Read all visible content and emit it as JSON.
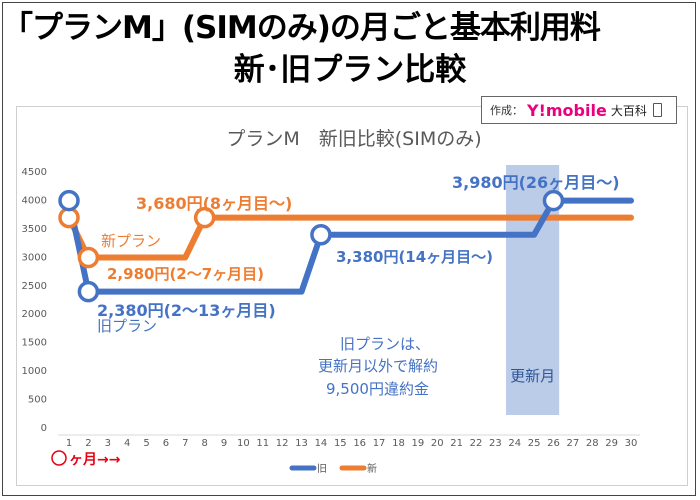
{
  "header": {
    "title_line1": "「プランM」(SIMのみ)の月ごと基本利用料",
    "title_line2": "新･旧プラン比較"
  },
  "badge": {
    "label": "作成：",
    "brand": "Y!mobile",
    "suffix": "大百科",
    "device_icon": "phone-icon"
  },
  "chart_data": {
    "type": "line",
    "title": "プランM　新旧比較(SIMのみ)",
    "xlabel": "〇ヶ月→→",
    "ylabel": "",
    "ylim": [
      0,
      4500
    ],
    "yticks": [
      0,
      500,
      1000,
      1500,
      2000,
      2500,
      3000,
      3500,
      4000,
      4500
    ],
    "x": [
      1,
      2,
      3,
      4,
      5,
      6,
      7,
      8,
      9,
      10,
      11,
      12,
      13,
      14,
      15,
      16,
      17,
      18,
      19,
      20,
      21,
      22,
      23,
      24,
      25,
      26,
      27,
      28,
      29,
      30
    ],
    "series": [
      {
        "name": "旧",
        "color": "#4472c4",
        "values": [
          3980,
          2380,
          2380,
          2380,
          2380,
          2380,
          2380,
          2380,
          2380,
          2380,
          2380,
          2380,
          2380,
          3380,
          3380,
          3380,
          3380,
          3380,
          3380,
          3380,
          3380,
          3380,
          3380,
          3380,
          3380,
          3980,
          3980,
          3980,
          3980,
          3980
        ],
        "markers": [
          1,
          2,
          14,
          26
        ]
      },
      {
        "name": "新",
        "color": "#ed7d31",
        "values": [
          3680,
          2980,
          2980,
          2980,
          2980,
          2980,
          2980,
          3680,
          3680,
          3680,
          3680,
          3680,
          3680,
          3680,
          3680,
          3680,
          3680,
          3680,
          3680,
          3680,
          3680,
          3680,
          3680,
          3680,
          3680,
          3680,
          3680,
          3680,
          3680,
          3680
        ],
        "markers": [
          1,
          2,
          8
        ]
      }
    ],
    "highlight": {
      "x_from": 24,
      "x_to": 26,
      "color": "#b4c6e7",
      "label": "更新月"
    },
    "annotations": [
      {
        "text": "3,980円(26ヶ月目〜)",
        "color": "#4472c4"
      },
      {
        "text": "3,680円(8ヶ月目〜)",
        "color": "#ed7d31"
      },
      {
        "text": "新プラン",
        "color": "#ed7d31"
      },
      {
        "text": "2,980円(2〜7ヶ月目)",
        "color": "#ed7d31"
      },
      {
        "text": "3,380円(14ヶ月目〜)",
        "color": "#4472c4"
      },
      {
        "text": "2,380円(2〜13ヶ月目)",
        "color": "#4472c4"
      },
      {
        "text": "旧プラン",
        "color": "#4472c4"
      },
      {
        "text": "旧プランは、",
        "color": "#4472c4"
      },
      {
        "text": "更新月以外で解約",
        "color": "#4472c4"
      },
      {
        "text": "9,500円違約金",
        "color": "#4472c4"
      }
    ],
    "legend": [
      "旧",
      "新"
    ],
    "legend_position": "bottom"
  }
}
